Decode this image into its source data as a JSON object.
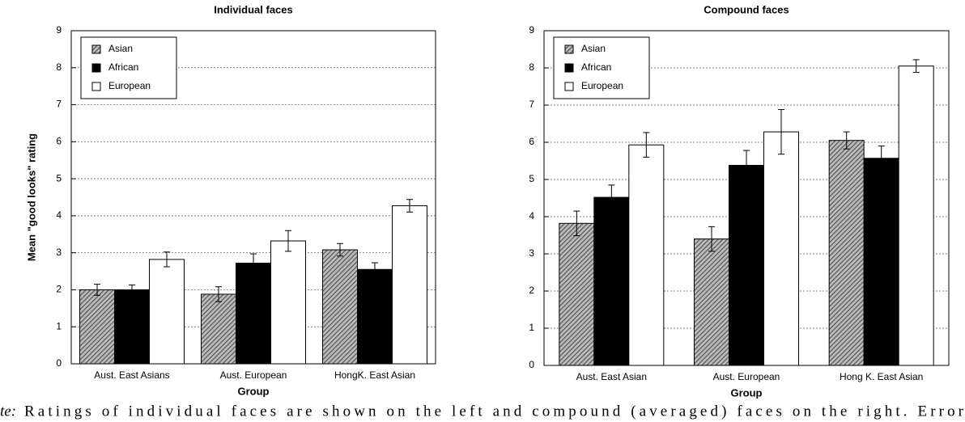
{
  "chart_data": [
    {
      "type": "bar",
      "title": "Individual faces",
      "ylabel": "Mean \"good looks\" rating",
      "xlabel": "Group",
      "categories": [
        "Aust. East Asians",
        "Aust. European",
        "HongK. East Asian"
      ],
      "series": [
        {
          "name": "Asian",
          "color": "#6e6e6e",
          "hatch": true,
          "values": [
            2.0,
            1.88,
            3.08
          ],
          "errors": [
            0.15,
            0.2,
            0.17
          ]
        },
        {
          "name": "African",
          "color": "#000000",
          "hatch": false,
          "values": [
            2.0,
            2.72,
            2.55
          ],
          "errors": [
            0.13,
            0.25,
            0.18
          ]
        },
        {
          "name": "European",
          "color": "#ffffff",
          "hatch": false,
          "values": [
            2.82,
            3.32,
            4.27
          ],
          "errors": [
            0.2,
            0.28,
            0.17
          ]
        }
      ],
      "ylim": [
        0,
        9
      ],
      "yticks": [
        0,
        1,
        2,
        3,
        4,
        5,
        6,
        7,
        8,
        9
      ],
      "grid": true,
      "legend": "upper left"
    },
    {
      "type": "bar",
      "title": "Compound faces",
      "xlabel": "Group",
      "categories": [
        "Aust. East Asian",
        "Aust. European",
        "Hong K. East Asian"
      ],
      "series": [
        {
          "name": "Asian",
          "color": "#6e6e6e",
          "hatch": true,
          "values": [
            3.82,
            3.4,
            6.05
          ],
          "errors": [
            0.33,
            0.33,
            0.23
          ]
        },
        {
          "name": "African",
          "color": "#000000",
          "hatch": false,
          "values": [
            4.52,
            5.38,
            5.57
          ],
          "errors": [
            0.33,
            0.4,
            0.33
          ]
        },
        {
          "name": "European",
          "color": "#ffffff",
          "hatch": false,
          "values": [
            5.93,
            6.28,
            8.05
          ],
          "errors": [
            0.33,
            0.6,
            0.17
          ]
        }
      ],
      "ylim": [
        0,
        9
      ],
      "yticks": [
        0,
        1,
        2,
        3,
        4,
        5,
        6,
        7,
        8,
        9
      ],
      "grid": true,
      "legend": "upper left"
    }
  ],
  "caption": {
    "label": "te:",
    "text": "Ratings of individual faces are shown on the left and compound (averaged) faces on the right. Error"
  }
}
